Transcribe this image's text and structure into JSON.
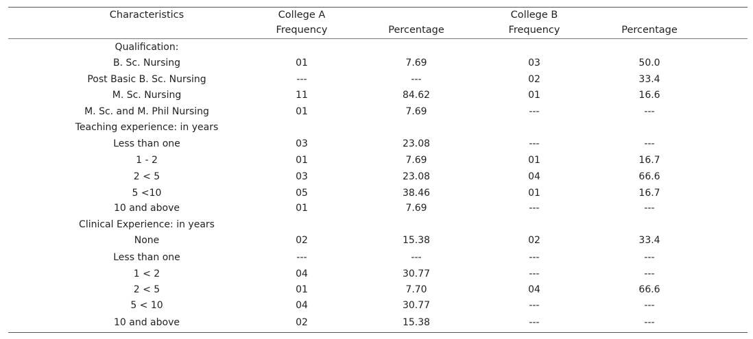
{
  "header": {
    "characteristics": "Characteristics",
    "college_a": "College A",
    "college_b": "College B",
    "frequency_a": "Frequency",
    "percentage_a": "Percentage",
    "frequency_b": "Frequency",
    "percentage_b": "Percentage"
  },
  "rows": [
    {
      "label": "Qualification:",
      "freq_a": "",
      "pct_a": "",
      "freq_b": "",
      "pct_b": ""
    },
    {
      "label": "B. Sc. Nursing",
      "freq_a": "01",
      "pct_a": "7.69",
      "freq_b": "03",
      "pct_b": "50.0"
    },
    {
      "label": "Post Basic B. Sc. Nursing",
      "freq_a": "---",
      "pct_a": "---",
      "freq_b": "02",
      "pct_b": "33.4"
    },
    {
      "label": "M. Sc. Nursing",
      "freq_a": "11",
      "pct_a": "84.62",
      "freq_b": "01",
      "pct_b": "16.6"
    },
    {
      "label": "M. Sc. and  M. Phil Nursing",
      "freq_a": "01",
      "pct_a": "7.69",
      "freq_b": "---",
      "pct_b": "---"
    },
    {
      "label": "Teaching experience: in years",
      "freq_a": "",
      "pct_a": "",
      "freq_b": "",
      "pct_b": ""
    },
    {
      "label": "Less than one",
      "freq_a": "03",
      "pct_a": "23.08",
      "freq_b": "---",
      "pct_b": "---"
    },
    {
      "label": "1 - 2",
      "freq_a": "01",
      "pct_a": "7.69",
      "freq_b": "01",
      "pct_b": "16.7"
    },
    {
      "label": "2 < 5",
      "freq_a": "03",
      "pct_a": "23.08",
      "freq_b": "04",
      "pct_b": "66.6"
    },
    {
      "label": "5 <10",
      "freq_a": "05",
      "pct_a": "38.46",
      "freq_b": "01",
      "pct_b": "16.7"
    },
    {
      "label": "10 and above",
      "freq_a": "01",
      "pct_a": "7.69",
      "freq_b": "---",
      "pct_b": "---"
    },
    {
      "label": "Clinical Experience: in years",
      "freq_a": "",
      "pct_a": "",
      "freq_b": "",
      "pct_b": ""
    },
    {
      "label": "None",
      "freq_a": "02",
      "pct_a": "15.38",
      "freq_b": "02",
      "pct_b": "33.4"
    },
    {
      "label": "Less than one",
      "freq_a": "---",
      "pct_a": "---",
      "freq_b": "---",
      "pct_b": "---"
    },
    {
      "label": "1 < 2",
      "freq_a": "04",
      "pct_a": "30.77",
      "freq_b": "---",
      "pct_b": "---"
    },
    {
      "label": "2 <  5",
      "freq_a": "01",
      "pct_a": "7.70",
      "freq_b": "04",
      "pct_b": "66.6"
    },
    {
      "label": "5 < 10",
      "freq_a": "04",
      "pct_a": "30.77",
      "freq_b": "---",
      "pct_b": "---"
    },
    {
      "label": "10 and above",
      "freq_a": "02",
      "pct_a": "15.38",
      "freq_b": "---",
      "pct_b": "---"
    }
  ]
}
